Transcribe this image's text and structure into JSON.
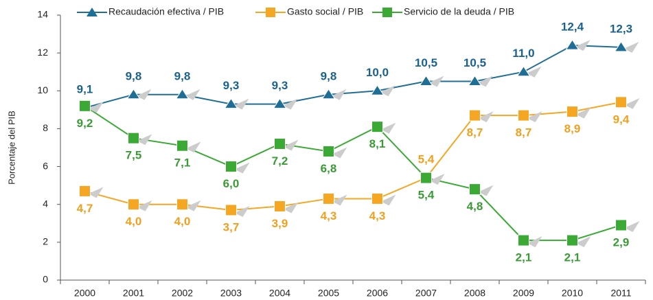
{
  "chart_data": {
    "type": "line",
    "y_label": "Porcentaje del PIB",
    "categories": [
      "2000",
      "2001",
      "2002",
      "2003",
      "2004",
      "2005",
      "2006",
      "2007",
      "2008",
      "2009",
      "2010",
      "2011"
    ],
    "series": [
      {
        "name": "Recaudación efectiva / PIB",
        "color": "#1f6e96",
        "marker": "triangle",
        "values": [
          9.1,
          9.8,
          9.8,
          9.3,
          9.3,
          9.8,
          10.0,
          10.5,
          10.5,
          11.0,
          12.4,
          12.3
        ],
        "value_labels": [
          "9,1",
          "9,8",
          "9,8",
          "9,3",
          "9,3",
          "9,8",
          "10,0",
          "10,5",
          "10,5",
          "11,0",
          "12,4",
          "12,3"
        ]
      },
      {
        "name": "Gasto social / PIB",
        "color": "#f5a623",
        "marker": "square",
        "values": [
          4.7,
          4.0,
          4.0,
          3.7,
          3.9,
          4.3,
          4.3,
          5.4,
          8.7,
          8.7,
          8.9,
          9.4
        ],
        "value_labels": [
          "4,7",
          "4,0",
          "4,0",
          "3,7",
          "3,9",
          "4,3",
          "4,3",
          "5,4",
          "8,7",
          "8,7",
          "8,9",
          "9,4"
        ]
      },
      {
        "name": "Servicio de la deuda / PIB",
        "color": "#3aaa35",
        "marker": "square",
        "values": [
          9.2,
          7.5,
          7.1,
          6.0,
          7.2,
          6.8,
          8.1,
          5.4,
          4.8,
          2.1,
          2.1,
          2.9
        ],
        "value_labels": [
          "9,2",
          "7,5",
          "7,1",
          "6,0",
          "7,2",
          "6,8",
          "8,1",
          "5,4",
          "4,8",
          "2,1",
          "2,1",
          "2,9"
        ]
      }
    ],
    "ylim": [
      0,
      14
    ],
    "yticks": [
      0,
      2,
      4,
      6,
      8,
      10,
      12,
      14
    ],
    "grid": false,
    "legend": "top"
  }
}
